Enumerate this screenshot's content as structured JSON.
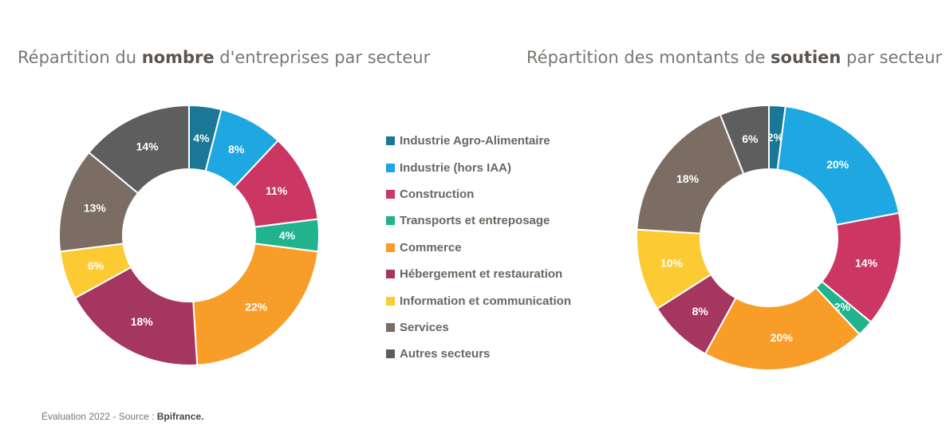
{
  "left_title": {
    "prefix": "Répartition du ",
    "bold": "nombre",
    "suffix": " d'entreprises par secteur"
  },
  "right_title": {
    "prefix": "Répartition des montants de ",
    "bold": "soutien",
    "suffix": " par secteur"
  },
  "sectors": [
    {
      "label": "Industrie Agro-Alimentaire",
      "color": "#1a7896"
    },
    {
      "label": "Industrie (hors IAA)",
      "color": "#1ea7e1"
    },
    {
      "label": "Construction",
      "color": "#cb3663"
    },
    {
      "label": "Transports et entreposage",
      "color": "#21b38e"
    },
    {
      "label": "Commerce",
      "color": "#f89d28"
    },
    {
      "label": "Hébergement et restauration",
      "color": "#a5365f"
    },
    {
      "label": "Information et communication",
      "color": "#fccb34"
    },
    {
      "label": "Services",
      "color": "#7b6d63"
    },
    {
      "label": "Autres secteurs",
      "color": "#5f5e5e"
    }
  ],
  "chart_data": [
    {
      "type": "pie",
      "title": "Répartition du nombre d'entreprises par secteur",
      "categories": [
        "Industrie Agro-Alimentaire",
        "Industrie (hors IAA)",
        "Construction",
        "Transports et entreposage",
        "Commerce",
        "Hébergement et restauration",
        "Information et communication",
        "Services",
        "Autres secteurs"
      ],
      "values": [
        4,
        8,
        11,
        4,
        22,
        18,
        6,
        13,
        14
      ],
      "labels": [
        "4%",
        "8%",
        "11%",
        "4%",
        "22%",
        "18%",
        "6%",
        "13%",
        "14%"
      ]
    },
    {
      "type": "pie",
      "title": "Répartition des montants de soutien par secteur",
      "categories": [
        "Industrie Agro-Alimentaire",
        "Industrie (hors IAA)",
        "Construction",
        "Transports et entreposage",
        "Commerce",
        "Hébergement et restauration",
        "Information et communication",
        "Services",
        "Autres secteurs"
      ],
      "values": [
        2,
        20,
        14,
        2,
        20,
        8,
        10,
        18,
        6
      ],
      "labels": [
        "2%",
        "20%",
        "14%",
        "2%",
        "20%",
        "8%",
        "10%",
        "18%",
        "6%"
      ]
    }
  ],
  "footer": {
    "text": "Évaluation 2022 - Source : ",
    "bold": "Bpifrance."
  }
}
